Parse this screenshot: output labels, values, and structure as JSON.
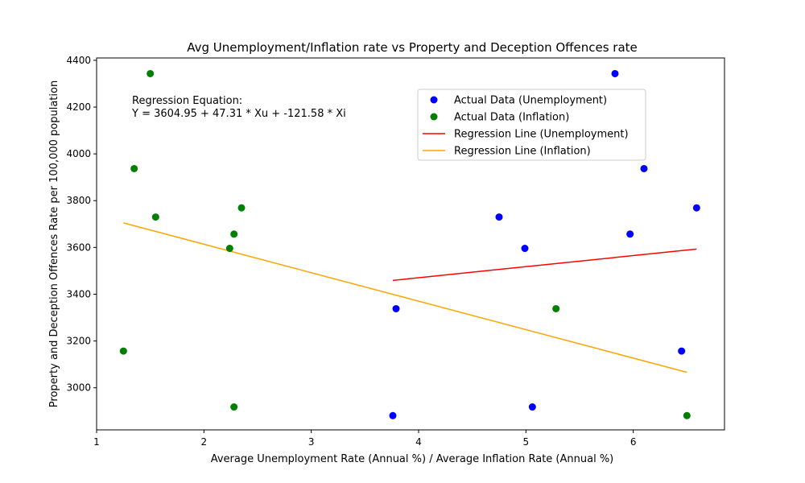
{
  "chart_data": {
    "type": "scatter",
    "title": "Avg Unemployment/Inflation rate vs Property and Deception Offences rate",
    "xlabel": "Average Unemployment Rate (Annual %) / Average Inflation Rate (Annual %)",
    "ylabel": "Property and Deception Offences Rate per 100,000 population",
    "xlim": [
      1.0,
      6.85
    ],
    "ylim": [
      2820,
      4410
    ],
    "xticks": [
      1,
      2,
      3,
      4,
      5,
      6
    ],
    "yticks": [
      3000,
      3200,
      3400,
      3600,
      3800,
      4000,
      4200,
      4400
    ],
    "grid": false,
    "legend_position": "upper center-right",
    "annotation": {
      "line1": "Regression Equation:",
      "line2": "Y = 3604.95 + 47.31 * Xu + -121.58 * Xi"
    },
    "series": [
      {
        "name": "Actual Data (Unemployment)",
        "kind": "scatter",
        "color": "#0000ff",
        "points": [
          [
            5.83,
            4343
          ],
          [
            6.1,
            3937
          ],
          [
            6.59,
            3769
          ],
          [
            4.75,
            3730
          ],
          [
            5.97,
            3657
          ],
          [
            4.99,
            3596
          ],
          [
            3.79,
            3338
          ],
          [
            6.45,
            3157
          ],
          [
            5.06,
            2918
          ],
          [
            3.76,
            2881
          ]
        ]
      },
      {
        "name": "Actual Data (Inflation)",
        "kind": "scatter",
        "color": "#008000",
        "points": [
          [
            1.5,
            4343
          ],
          [
            1.35,
            3937
          ],
          [
            2.35,
            3769
          ],
          [
            1.55,
            3730
          ],
          [
            2.28,
            3657
          ],
          [
            2.24,
            3596
          ],
          [
            5.28,
            3338
          ],
          [
            1.25,
            3157
          ],
          [
            2.28,
            2918
          ],
          [
            6.5,
            2881
          ]
        ]
      },
      {
        "name": "Regression Line (Unemployment)",
        "kind": "line",
        "color": "#ff0000",
        "points": [
          [
            3.76,
            3459
          ],
          [
            6.59,
            3593
          ]
        ]
      },
      {
        "name": "Regression Line (Inflation)",
        "kind": "line",
        "color": "#ffa500",
        "points": [
          [
            1.25,
            3705
          ],
          [
            6.5,
            3066
          ]
        ]
      }
    ]
  }
}
